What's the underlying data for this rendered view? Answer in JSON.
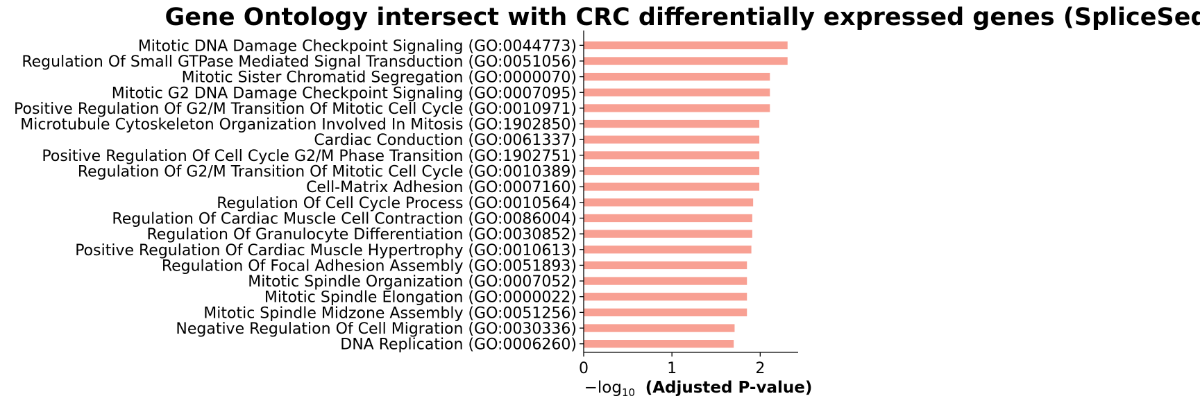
{
  "chart_data": {
    "type": "bar",
    "orientation": "horizontal",
    "title": "Gene Ontology intersect with CRC differentially expressed genes (SpliceSeq)",
    "xlabel": {
      "prefix": "−log",
      "subscript": "10",
      "bold_text": "(Adjusted P-value)"
    },
    "xlim": [
      0,
      2.43
    ],
    "xticks": [
      "0",
      "1",
      "2"
    ],
    "bar_color": "#f8a093",
    "grid": false,
    "categories": [
      "Mitotic DNA Damage Checkpoint Signaling (GO:0044773)",
      "Regulation Of Small GTPase Mediated Signal Transduction (GO:0051056)",
      "Mitotic Sister Chromatid Segregation (GO:0000070)",
      "Mitotic G2 DNA Damage Checkpoint Signaling (GO:0007095)",
      "Positive Regulation Of G2/M Transition Of Mitotic Cell Cycle (GO:0010971)",
      "Microtubule Cytoskeleton Organization Involved In Mitosis (GO:1902850)",
      "Cardiac Conduction (GO:0061337)",
      "Positive Regulation Of Cell Cycle G2/M Phase Transition (GO:1902751)",
      "Regulation Of G2/M Transition Of Mitotic Cell Cycle (GO:0010389)",
      "Cell-Matrix Adhesion (GO:0007160)",
      "Regulation Of Cell Cycle Process (GO:0010564)",
      "Regulation Of Cardiac Muscle Cell Contraction (GO:0086004)",
      "Regulation Of Granulocyte Differentiation (GO:0030852)",
      "Positive Regulation Of Cardiac Muscle Hypertrophy (GO:0010613)",
      "Regulation Of Focal Adhesion Assembly (GO:0051893)",
      "Mitotic Spindle Organization (GO:0007052)",
      "Mitotic Spindle Elongation (GO:0000022)",
      "Mitotic Spindle Midzone Assembly (GO:0051256)",
      "Negative Regulation Of Cell Migration (GO:0030336)",
      "DNA Replication (GO:0006260)"
    ],
    "values": [
      2.31,
      2.31,
      2.11,
      2.11,
      2.11,
      1.99,
      1.99,
      1.99,
      1.99,
      1.99,
      1.92,
      1.91,
      1.91,
      1.9,
      1.85,
      1.85,
      1.85,
      1.85,
      1.71,
      1.7
    ]
  }
}
